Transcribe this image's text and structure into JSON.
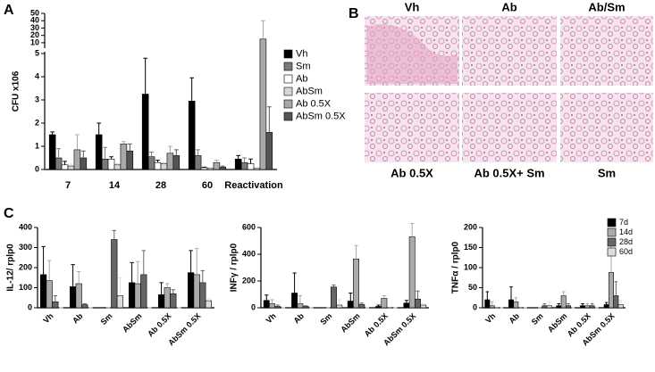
{
  "panel_labels": [
    "A",
    "B",
    "C"
  ],
  "histology": {
    "labels": [
      "Vh",
      "Ab",
      "Ab/Sm",
      "Ab 0.5X",
      "Ab 0.5X+ Sm",
      "Sm"
    ]
  },
  "chart_data": [
    {
      "type": "bar",
      "y_label": "CFU x106",
      "categories": [
        "7",
        "14",
        "28",
        "60",
        "Reactivation"
      ],
      "ylim": [
        0,
        50
      ],
      "ybreak": 5,
      "yticks": [
        0,
        1,
        2,
        3,
        4,
        5,
        10,
        20,
        30,
        40,
        50
      ],
      "legend": "right",
      "series": [
        {
          "name": "Vh",
          "color": "#000000",
          "values": [
            1.5,
            1.5,
            3.25,
            2.95,
            0.45
          ],
          "errors": [
            0.12,
            0.5,
            1.55,
            1,
            0.15
          ]
        },
        {
          "name": "Sm",
          "color": "#7a7a7a",
          "values": [
            0.5,
            0.45,
            0.55,
            0.6,
            0.3
          ],
          "errors": [
            0.4,
            0.5,
            0.2,
            0.25,
            0.2
          ]
        },
        {
          "name": "Ab",
          "color": "#ffffff",
          "values": [
            0.2,
            0.45,
            0.3,
            0.08,
            0.25
          ],
          "errors": [
            0.15,
            0.1,
            0.1,
            0.02,
            0.2
          ]
        },
        {
          "name": "AbSm",
          "color": "#d8d8d8",
          "values": [
            0.15,
            0.2,
            0.25,
            0.05,
            0.05
          ],
          "errors": [
            0.08,
            0.05,
            0.05,
            0.02,
            0.02
          ]
        },
        {
          "name": "Ab 0.5X",
          "color": "#a8a8a8",
          "values": [
            0.85,
            1.1,
            0.7,
            0.3,
            15
          ],
          "errors": [
            0.65,
            0.1,
            0.3,
            0.1,
            25
          ]
        },
        {
          "name": "AbSm 0.5X",
          "color": "#555555",
          "values": [
            0.5,
            0.8,
            0.6,
            0.1,
            1.6
          ],
          "errors": [
            0.3,
            0.3,
            0.25,
            0.05,
            1.1
          ]
        }
      ]
    },
    {
      "type": "bar",
      "y_label": "IL-12/ rplp0",
      "categories": [
        "Vh",
        "Ab",
        "Sm",
        "AbSm",
        "Ab 0.5X",
        "AbSm 0.5X"
      ],
      "ylim": [
        0,
        400
      ],
      "yticks": [
        0,
        100,
        200,
        300,
        400
      ],
      "series": [
        {
          "name": "7d",
          "color": "#000000",
          "values": [
            165,
            105,
            0,
            125,
            65,
            175
          ],
          "errors": [
            140,
            110,
            0,
            100,
            60,
            110
          ]
        },
        {
          "name": "14d",
          "color": "#aaaaaa",
          "values": [
            135,
            120,
            0,
            120,
            100,
            165
          ],
          "errors": [
            100,
            60,
            0,
            110,
            20,
            130
          ]
        },
        {
          "name": "28d",
          "color": "#666666",
          "values": [
            30,
            15,
            340,
            165,
            70,
            125
          ],
          "errors": [
            30,
            5,
            45,
            120,
            20,
            60
          ]
        },
        {
          "name": "60d",
          "color": "#dddddd",
          "values": [
            0,
            0,
            60,
            0,
            0,
            35
          ],
          "errors": [
            0,
            0,
            90,
            0,
            0,
            10
          ]
        }
      ]
    },
    {
      "type": "bar",
      "y_label": "INFγ / rplp0",
      "categories": [
        "Vh",
        "Ab",
        "Sm",
        "AbSm",
        "Ab 0.5X",
        "AbSm 0.5X"
      ],
      "ylim": [
        0,
        600
      ],
      "yticks": [
        0,
        200,
        400,
        600
      ],
      "series": [
        {
          "name": "7d",
          "color": "#000000",
          "values": [
            55,
            110,
            0,
            50,
            10,
            35
          ],
          "errors": [
            40,
            150,
            0,
            60,
            10,
            20
          ]
        },
        {
          "name": "14d",
          "color": "#aaaaaa",
          "values": [
            30,
            30,
            0,
            365,
            70,
            530
          ],
          "errors": [
            30,
            60,
            0,
            100,
            20,
            100
          ]
        },
        {
          "name": "28d",
          "color": "#666666",
          "values": [
            10,
            10,
            155,
            25,
            0,
            65
          ],
          "errors": [
            10,
            5,
            15,
            10,
            0,
            60
          ]
        },
        {
          "name": "60d",
          "color": "#dddddd",
          "values": [
            0,
            0,
            20,
            0,
            0,
            20
          ],
          "errors": [
            0,
            0,
            40,
            0,
            0,
            10
          ]
        }
      ]
    },
    {
      "type": "bar",
      "y_label": "TNFα / rplp0",
      "categories": [
        "Vh",
        "Ab",
        "Sm",
        "AbSm",
        "Ab 0.5X",
        "AbSm 0.5X"
      ],
      "ylim": [
        0,
        200
      ],
      "yticks": [
        0,
        50,
        100,
        150,
        200
      ],
      "legend": "upper right",
      "series": [
        {
          "name": "7d",
          "color": "#000000",
          "values": [
            20,
            20,
            0,
            5,
            5,
            8
          ],
          "errors": [
            20,
            32,
            0,
            5,
            5,
            5
          ]
        },
        {
          "name": "14d",
          "color": "#aaaaaa",
          "values": [
            5,
            15,
            0,
            30,
            5,
            88
          ],
          "errors": [
            10,
            10,
            0,
            10,
            5,
            72
          ]
        },
        {
          "name": "28d",
          "color": "#666666",
          "values": [
            0,
            0,
            5,
            5,
            5,
            30
          ],
          "errors": [
            0,
            0,
            5,
            5,
            5,
            35
          ]
        },
        {
          "name": "60d",
          "color": "#dddddd",
          "values": [
            0,
            0,
            5,
            0,
            0,
            8
          ],
          "errors": [
            0,
            0,
            10,
            0,
            0,
            10
          ]
        }
      ]
    }
  ]
}
